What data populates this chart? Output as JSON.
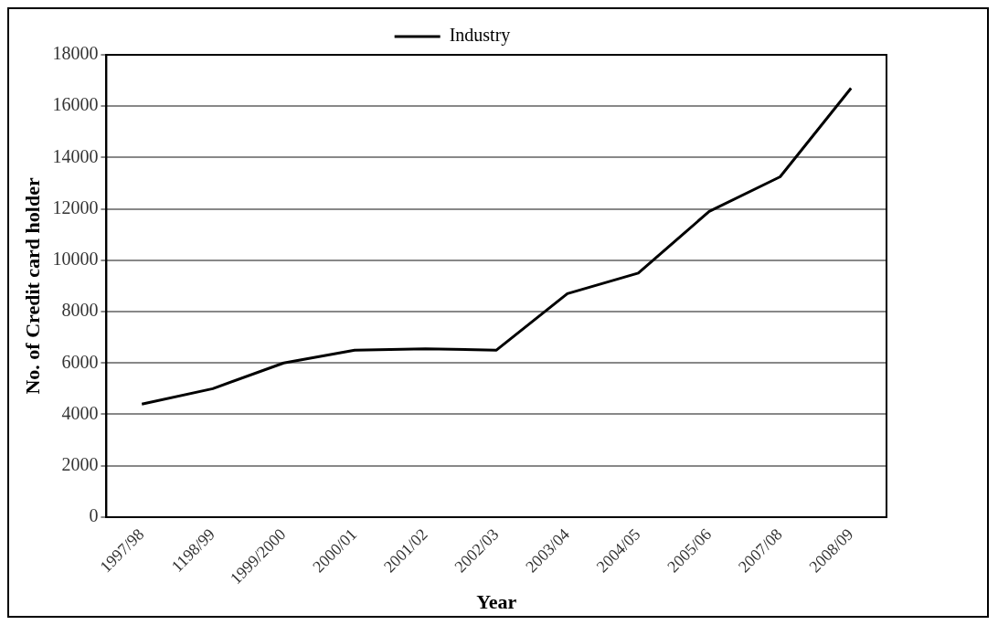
{
  "chart_data": {
    "type": "line",
    "xlabel": "Year",
    "ylabel": "No. of Credit card holder",
    "categories": [
      "1997/98",
      "1198/99",
      "1999/2000",
      "2000/01",
      "2001/02",
      "2002/03",
      "2003/04",
      "2004/05",
      "2005/06",
      "2007/08",
      "2008/09"
    ],
    "series": [
      {
        "name": "Industry",
        "color": "#000000",
        "values": [
          4400,
          5000,
          6000,
          6500,
          6550,
          6500,
          8700,
          9500,
          11900,
          13250,
          16700
        ]
      }
    ],
    "ylim": [
      0,
      18000
    ],
    "yticks": [
      0,
      2000,
      4000,
      6000,
      8000,
      10000,
      12000,
      14000,
      16000,
      18000
    ],
    "grid": "y",
    "legend": "top",
    "marker": "none",
    "line_style": "solid"
  }
}
